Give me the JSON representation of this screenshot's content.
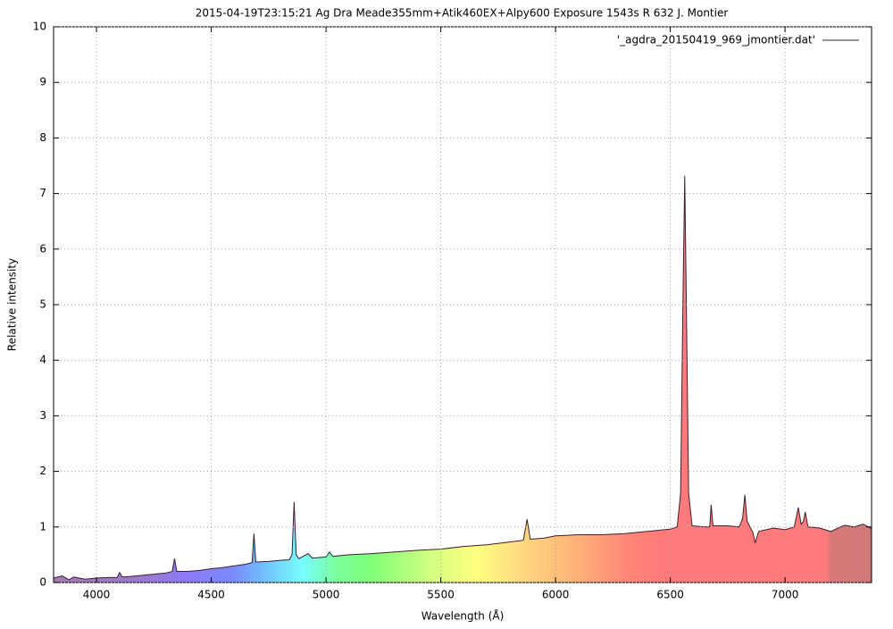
{
  "chart_data": {
    "type": "area",
    "title": "2015-04-19T23:15:21 Ag Dra Meade355mm+Atik460EX+Alpy600 Exposure 1543s R 632 J. Montier",
    "x_label": "Wavelength (Å)",
    "y_label": "Relative intensity",
    "xlim": [
      3813,
      7377
    ],
    "ylim": [
      0,
      10
    ],
    "xticks": [
      4000,
      4500,
      5000,
      5500,
      6000,
      6500,
      7000
    ],
    "yticks": [
      0,
      1,
      2,
      3,
      4,
      5,
      6,
      7,
      8,
      9,
      10
    ],
    "grid": true,
    "legend": "upper right",
    "series": [
      {
        "name": "'_agdra_20150419_969_jmontier.dat'",
        "color": "#3d1f2e",
        "x": [
          3813,
          3850,
          3880,
          3900,
          3950,
          4000,
          4050,
          4090,
          4101,
          4112,
          4150,
          4200,
          4250,
          4300,
          4330,
          4340,
          4350,
          4400,
          4450,
          4500,
          4550,
          4600,
          4650,
          4678,
          4686,
          4694,
          4750,
          4800,
          4840,
          4852,
          4861,
          4870,
          4882,
          4922,
          4940,
          5000,
          5015,
          5030,
          5100,
          5200,
          5300,
          5400,
          5500,
          5600,
          5700,
          5800,
          5860,
          5876,
          5890,
          5950,
          6000,
          6100,
          6200,
          6300,
          6400,
          6500,
          6530,
          6545,
          6555,
          6563,
          6570,
          6580,
          6595,
          6650,
          6672,
          6678,
          6686,
          6750,
          6800,
          6815,
          6825,
          6835,
          6860,
          6870,
          6885,
          6950,
          7000,
          7040,
          7058,
          7070,
          7080,
          7088,
          7100,
          7150,
          7200,
          7230,
          7260,
          7300,
          7340,
          7377
        ],
        "values": [
          0.08,
          0.12,
          0.05,
          0.1,
          0.06,
          0.08,
          0.09,
          0.09,
          0.18,
          0.1,
          0.11,
          0.13,
          0.15,
          0.17,
          0.2,
          0.43,
          0.2,
          0.2,
          0.22,
          0.25,
          0.27,
          0.3,
          0.33,
          0.36,
          0.88,
          0.37,
          0.38,
          0.4,
          0.41,
          0.5,
          1.45,
          0.5,
          0.43,
          0.52,
          0.44,
          0.46,
          0.55,
          0.47,
          0.5,
          0.52,
          0.55,
          0.58,
          0.6,
          0.65,
          0.68,
          0.73,
          0.76,
          1.14,
          0.78,
          0.8,
          0.84,
          0.86,
          0.86,
          0.88,
          0.92,
          0.96,
          1.0,
          1.6,
          5.0,
          7.32,
          5.0,
          1.6,
          1.02,
          1.0,
          1.0,
          1.4,
          1.02,
          1.02,
          1.0,
          1.15,
          1.58,
          1.1,
          0.9,
          0.72,
          0.92,
          0.98,
          0.95,
          1.0,
          1.35,
          1.05,
          1.1,
          1.27,
          1.0,
          0.98,
          0.92,
          0.98,
          1.03,
          1.0,
          1.05,
          0.97
        ]
      }
    ]
  }
}
